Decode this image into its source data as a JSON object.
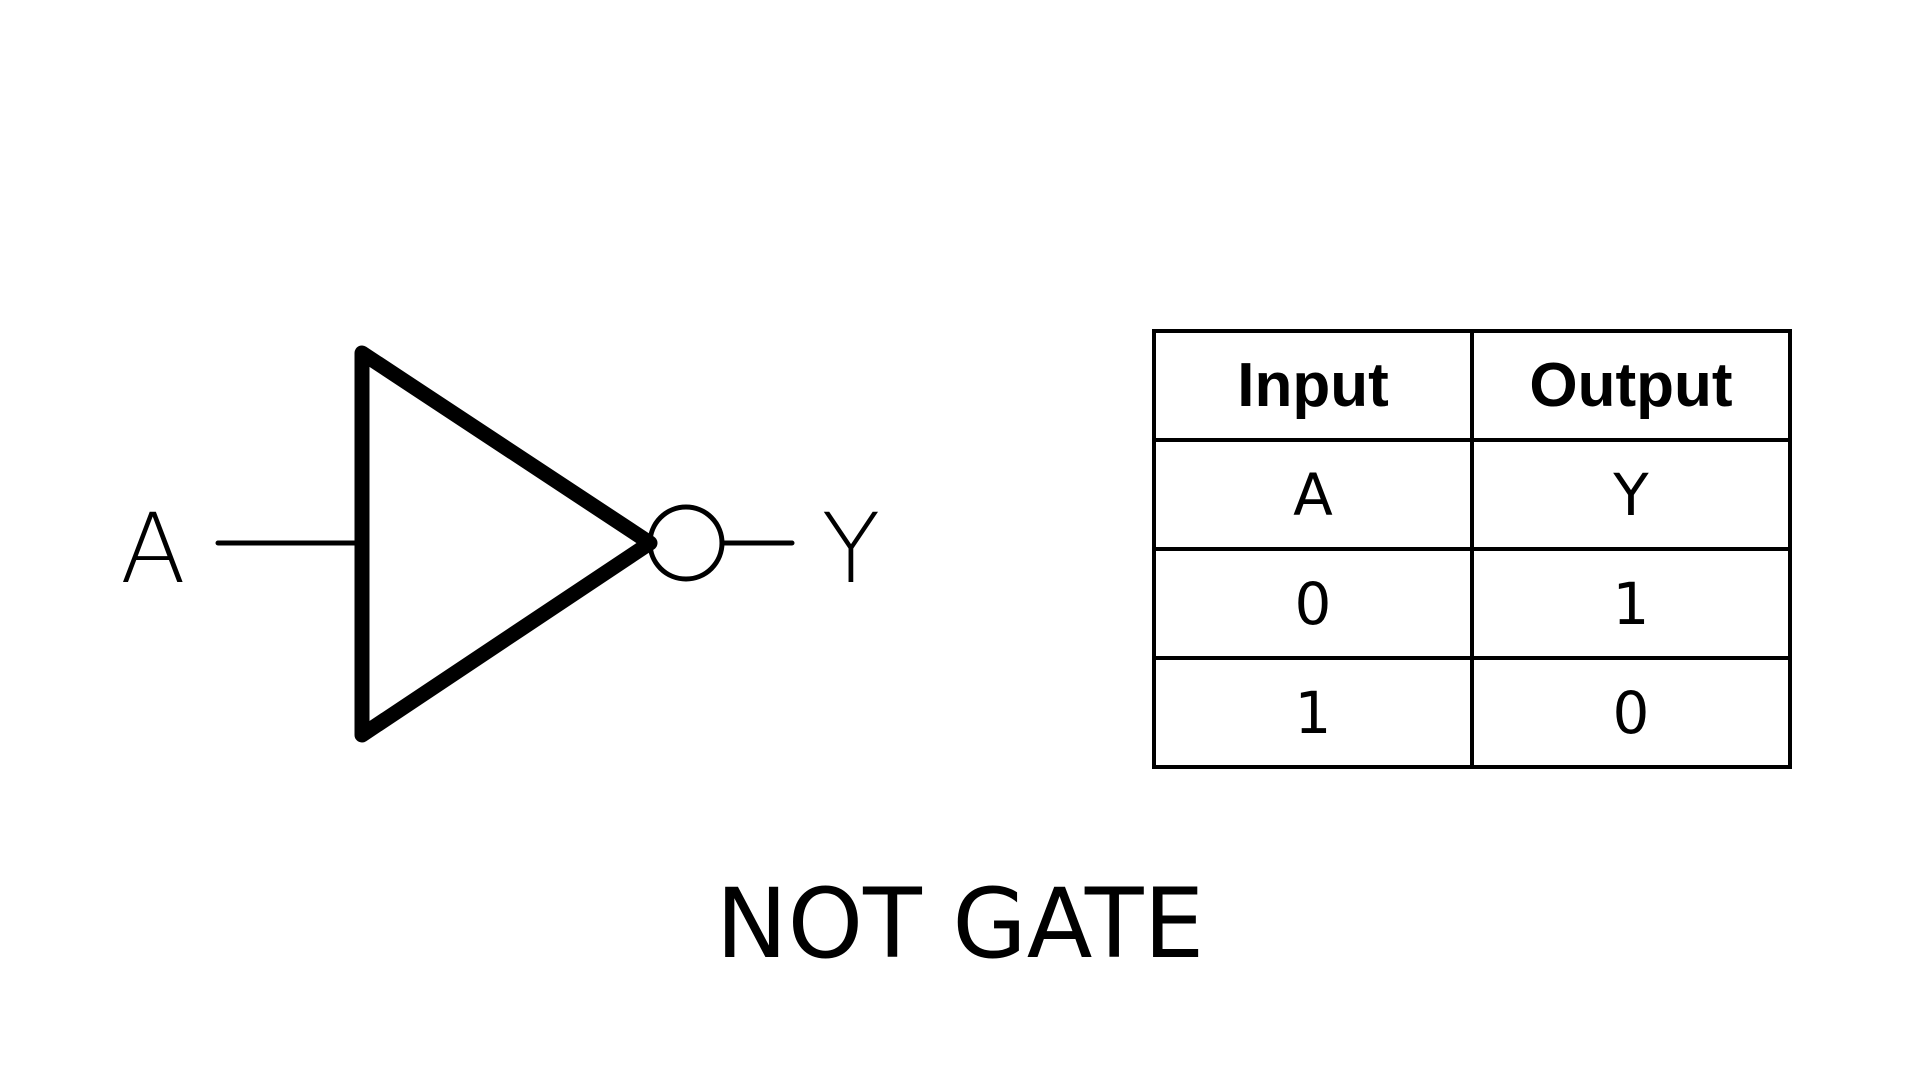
{
  "gate": {
    "input_label": "A",
    "output_label": "Y"
  },
  "truth_table": {
    "headers": [
      "Input",
      "Output"
    ],
    "rows": [
      [
        "A",
        "Y"
      ],
      [
        "0",
        "1"
      ],
      [
        "1",
        "0"
      ]
    ]
  },
  "title": "NOT GATE"
}
